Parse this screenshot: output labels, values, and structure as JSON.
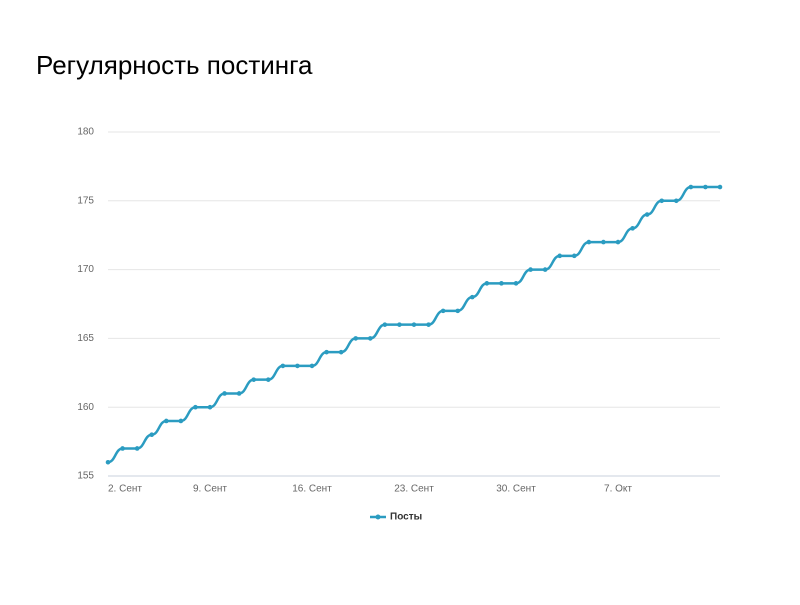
{
  "chart_data": {
    "type": "line",
    "title": "Регулярность постинга",
    "categories": [
      "2. Сент",
      null,
      null,
      null,
      null,
      null,
      null,
      "9. Сент",
      null,
      null,
      null,
      null,
      null,
      null,
      "16. Сент",
      null,
      null,
      null,
      null,
      null,
      null,
      "23. Сент",
      null,
      null,
      null,
      null,
      null,
      null,
      "30. Сент",
      null,
      null,
      null,
      null,
      null,
      null,
      "7. Окт",
      null,
      null,
      null,
      null,
      null,
      null,
      null
    ],
    "series": [
      {
        "name": "Посты",
        "color": "#2b9cc1",
        "values": [
          156,
          157,
          157,
          158,
          159,
          159,
          160,
          160,
          161,
          161,
          162,
          162,
          163,
          163,
          163,
          164,
          164,
          165,
          165,
          166,
          166,
          166,
          166,
          167,
          167,
          168,
          169,
          169,
          169,
          170,
          170,
          171,
          171,
          172,
          172,
          172,
          173,
          174,
          175,
          175,
          176,
          176,
          176
        ]
      }
    ],
    "ylim": [
      155,
      180
    ],
    "yticks": [
      155,
      160,
      165,
      170,
      175,
      180
    ],
    "grid": true,
    "legend": "bottom"
  }
}
